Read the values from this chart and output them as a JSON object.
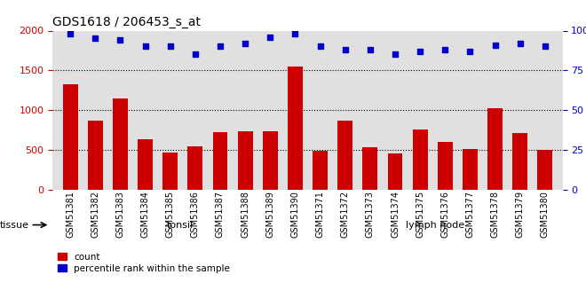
{
  "title": "GDS1618 / 206453_s_at",
  "categories": [
    "GSM51381",
    "GSM51382",
    "GSM51383",
    "GSM51384",
    "GSM51385",
    "GSM51386",
    "GSM51387",
    "GSM51388",
    "GSM51389",
    "GSM51390",
    "GSM51371",
    "GSM51372",
    "GSM51373",
    "GSM51374",
    "GSM51375",
    "GSM51376",
    "GSM51377",
    "GSM51378",
    "GSM51379",
    "GSM51380"
  ],
  "counts": [
    1320,
    870,
    1150,
    630,
    470,
    540,
    720,
    730,
    730,
    1550,
    490,
    870,
    530,
    460,
    760,
    600,
    510,
    1020,
    710,
    500
  ],
  "percentiles": [
    98,
    95,
    94,
    90,
    90,
    85,
    90,
    92,
    96,
    98,
    90,
    88,
    88,
    85,
    87,
    88,
    87,
    91,
    92,
    90
  ],
  "tonsil_count": 10,
  "lymph_count": 10,
  "bar_color": "#cc0000",
  "dot_color": "#0000cc",
  "tonsil_color": "#aaffaa",
  "lymph_color": "#44cc44",
  "left_ylim": [
    0,
    2000
  ],
  "right_ylim": [
    0,
    100
  ],
  "left_yticks": [
    0,
    500,
    1000,
    1500,
    2000
  ],
  "right_yticks": [
    0,
    25,
    50,
    75,
    100
  ],
  "grid_values": [
    500,
    1000,
    1500
  ],
  "background_color": "#e0e0e0"
}
